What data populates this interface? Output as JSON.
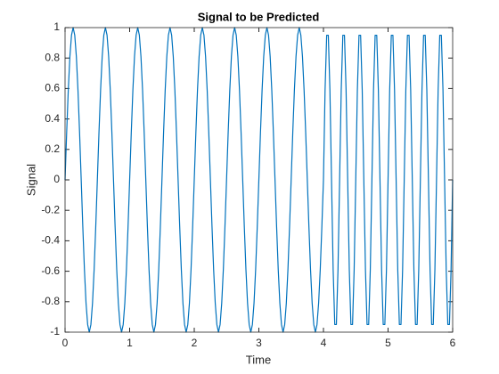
{
  "chart_data": {
    "type": "line",
    "title": "Signal to be Predicted",
    "x_label": "Time",
    "y_label": "Signal",
    "xlim": [
      0,
      6
    ],
    "xticks": [
      0,
      1,
      2,
      3,
      4,
      5,
      6
    ],
    "ylim": [
      -1,
      1
    ],
    "yticks": [
      -1,
      -0.8,
      -0.6,
      -0.4,
      -0.2,
      0,
      0.2,
      0.4,
      0.6,
      0.8,
      1
    ],
    "x": [
      0,
      0.025,
      0.05,
      0.075,
      0.1,
      0.125,
      0.15,
      0.175,
      0.2,
      0.225,
      0.25,
      0.275,
      0.3,
      0.325,
      0.35,
      0.375,
      0.4,
      0.425,
      0.45,
      0.475,
      0.5,
      0.525,
      0.55,
      0.575,
      0.6,
      0.625,
      0.65,
      0.675,
      0.7,
      0.725,
      0.75,
      0.775,
      0.8,
      0.825,
      0.85,
      0.875,
      0.9,
      0.925,
      0.95,
      0.975,
      1,
      1.025,
      1.05,
      1.075,
      1.1,
      1.125,
      1.15,
      1.175,
      1.2,
      1.225,
      1.25,
      1.275,
      1.3,
      1.325,
      1.35,
      1.375,
      1.4,
      1.425,
      1.45,
      1.475,
      1.5,
      1.525,
      1.55,
      1.575,
      1.6,
      1.625,
      1.65,
      1.675,
      1.7,
      1.725,
      1.75,
      1.775,
      1.8,
      1.825,
      1.85,
      1.875,
      1.9,
      1.925,
      1.95,
      1.975,
      2,
      2.025,
      2.05,
      2.075,
      2.1,
      2.125,
      2.15,
      2.175,
      2.2,
      2.225,
      2.25,
      2.275,
      2.3,
      2.325,
      2.35,
      2.375,
      2.4,
      2.425,
      2.45,
      2.475,
      2.5,
      2.525,
      2.55,
      2.575,
      2.6,
      2.625,
      2.65,
      2.675,
      2.7,
      2.725,
      2.75,
      2.775,
      2.8,
      2.825,
      2.85,
      2.875,
      2.9,
      2.925,
      2.95,
      2.975,
      3,
      3.025,
      3.05,
      3.075,
      3.1,
      3.125,
      3.15,
      3.175,
      3.2,
      3.225,
      3.25,
      3.275,
      3.3,
      3.325,
      3.35,
      3.375,
      3.4,
      3.425,
      3.45,
      3.475,
      3.5,
      3.525,
      3.55,
      3.575,
      3.6,
      3.625,
      3.65,
      3.675,
      3.7,
      3.725,
      3.75,
      3.775,
      3.8,
      3.825,
      3.85,
      3.875,
      3.9,
      3.925,
      3.95,
      3.975,
      4,
      4.025,
      4.05,
      4.075,
      4.1,
      4.125,
      4.15,
      4.175,
      4.2,
      4.225,
      4.25,
      4.275,
      4.3,
      4.325,
      4.35,
      4.375,
      4.4,
      4.425,
      4.45,
      4.475,
      4.5,
      4.525,
      4.55,
      4.575,
      4.6,
      4.625,
      4.65,
      4.675,
      4.7,
      4.725,
      4.75,
      4.775,
      4.8,
      4.825,
      4.85,
      4.875,
      4.9,
      4.925,
      4.95,
      4.975,
      5,
      5.025,
      5.05,
      5.075,
      5.1,
      5.125,
      5.15,
      5.175,
      5.2,
      5.225,
      5.25,
      5.275,
      5.3,
      5.325,
      5.35,
      5.375,
      5.4,
      5.425,
      5.45,
      5.475,
      5.5,
      5.525,
      5.55,
      5.575,
      5.6,
      5.625,
      5.65,
      5.675,
      5.7,
      5.725,
      5.75,
      5.775,
      5.8,
      5.825,
      5.85,
      5.875,
      5.9,
      5.925,
      5.95,
      5.975,
      6
    ],
    "series": [
      {
        "color": "#0072bd",
        "values": [
          0,
          0.31,
          0.59,
          0.81,
          0.95,
          1,
          0.95,
          0.81,
          0.59,
          0.31,
          0,
          -0.31,
          -0.59,
          -0.81,
          -0.95,
          -1,
          -0.95,
          -0.81,
          -0.59,
          -0.31,
          0,
          0.31,
          0.59,
          0.81,
          0.95,
          1,
          0.95,
          0.81,
          0.59,
          0.31,
          0,
          -0.31,
          -0.59,
          -0.81,
          -0.95,
          -1,
          -0.95,
          -0.81,
          -0.59,
          -0.31,
          0,
          0.31,
          0.59,
          0.81,
          0.95,
          1,
          0.95,
          0.81,
          0.59,
          0.31,
          0,
          -0.31,
          -0.59,
          -0.81,
          -0.95,
          -1,
          -0.95,
          -0.81,
          -0.59,
          -0.31,
          0,
          0.31,
          0.59,
          0.81,
          0.95,
          1,
          0.95,
          0.81,
          0.59,
          0.31,
          0,
          -0.31,
          -0.59,
          -0.81,
          -0.95,
          -1,
          -0.95,
          -0.81,
          -0.59,
          -0.31,
          0,
          0.31,
          0.59,
          0.81,
          0.95,
          1,
          0.95,
          0.81,
          0.59,
          0.31,
          0,
          -0.31,
          -0.59,
          -0.81,
          -0.95,
          -1,
          -0.95,
          -0.81,
          -0.59,
          -0.31,
          0,
          0.31,
          0.59,
          0.81,
          0.95,
          1,
          0.95,
          0.81,
          0.59,
          0.31,
          0,
          -0.31,
          -0.59,
          -0.81,
          -0.95,
          -1,
          -0.95,
          -0.81,
          -0.59,
          -0.31,
          0,
          0.31,
          0.59,
          0.81,
          0.95,
          1,
          0.95,
          0.81,
          0.59,
          0.31,
          0,
          -0.31,
          -0.59,
          -0.81,
          -0.95,
          -1,
          -0.95,
          -0.81,
          -0.59,
          -0.31,
          0,
          0.31,
          0.59,
          0.81,
          0.95,
          1,
          0.95,
          0.81,
          0.59,
          0.31,
          0,
          -0.31,
          -0.59,
          -0.81,
          -0.95,
          -1,
          -0.95,
          -0.81,
          -0.59,
          -0.31,
          0,
          0.59,
          0.95,
          0.95,
          0.59,
          0,
          -0.59,
          -0.95,
          -0.95,
          -0.59,
          0,
          0.59,
          0.95,
          0.95,
          0.59,
          0,
          -0.59,
          -0.95,
          -0.95,
          -0.59,
          0,
          0.59,
          0.95,
          0.95,
          0.59,
          0,
          -0.59,
          -0.95,
          -0.95,
          -0.59,
          0,
          0.59,
          0.95,
          0.95,
          0.59,
          0,
          -0.59,
          -0.95,
          -0.95,
          -0.59,
          0,
          0.59,
          0.95,
          0.95,
          0.59,
          0,
          -0.59,
          -0.95,
          -0.95,
          -0.59,
          0,
          0.59,
          0.95,
          0.95,
          0.59,
          0,
          -0.59,
          -0.95,
          -0.95,
          -0.59,
          0,
          0.59,
          0.95,
          0.95,
          0.59,
          0,
          -0.59,
          -0.95,
          -0.95,
          -0.59,
          0,
          0.59,
          0.95,
          0.95,
          0.59,
          0,
          -0.59,
          -0.95,
          -0.95,
          -0.59,
          0
        ]
      }
    ]
  }
}
